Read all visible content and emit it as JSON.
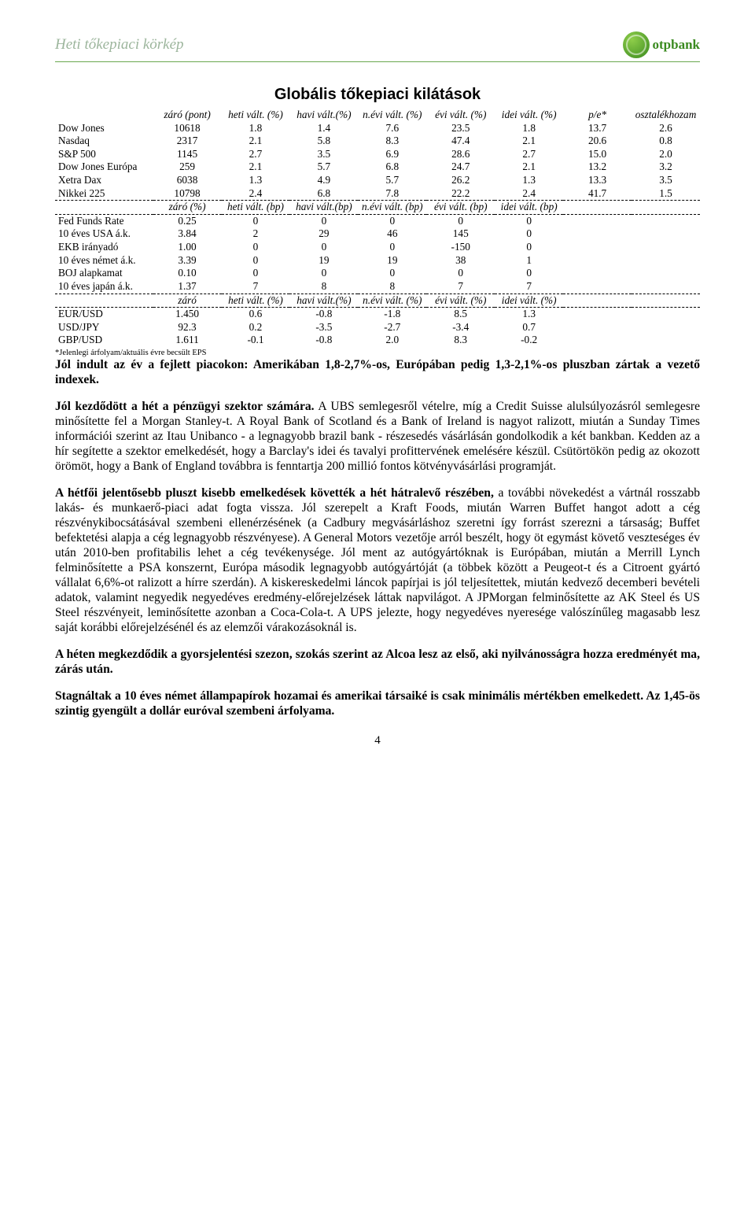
{
  "header": {
    "title": "Heti tőkepiaci körkép",
    "brand": "otpbank"
  },
  "title": "Globális tőkepiaci kilátások",
  "section1": {
    "headers": [
      "",
      "záró (pont)",
      "heti vált. (%)",
      "havi vált.(%)",
      "n.évi vált. (%)",
      "évi vált. (%)",
      "idei vált. (%)",
      "p/e*",
      "osztalékhozam"
    ],
    "rows": [
      [
        "Dow Jones",
        "10618",
        "1.8",
        "1.4",
        "7.6",
        "23.5",
        "1.8",
        "13.7",
        "2.6"
      ],
      [
        "Nasdaq",
        "2317",
        "2.1",
        "5.8",
        "8.3",
        "47.4",
        "2.1",
        "20.6",
        "0.8"
      ],
      [
        "S&P 500",
        "1145",
        "2.7",
        "3.5",
        "6.9",
        "28.6",
        "2.7",
        "15.0",
        "2.0"
      ],
      [
        "Dow Jones Európa",
        "259",
        "2.1",
        "5.7",
        "6.8",
        "24.7",
        "2.1",
        "13.2",
        "3.2"
      ],
      [
        "Xetra Dax",
        "6038",
        "1.3",
        "4.9",
        "5.7",
        "26.2",
        "1.3",
        "13.3",
        "3.5"
      ],
      [
        "Nikkei 225",
        "10798",
        "2.4",
        "6.8",
        "7.8",
        "22.2",
        "2.4",
        "41.7",
        "1.5"
      ]
    ]
  },
  "section2": {
    "headers": [
      "",
      "záró (%)",
      "heti vált. (bp)",
      "havi vált.(bp)",
      "n.évi vált. (bp)",
      "évi vált. (bp)",
      "idei vált. (bp)",
      "",
      ""
    ],
    "rows": [
      [
        "Fed Funds Rate",
        "0.25",
        "0",
        "0",
        "0",
        "0",
        "0",
        "",
        ""
      ],
      [
        "10 éves USA á.k.",
        "3.84",
        "2",
        "29",
        "46",
        "145",
        "0",
        "",
        ""
      ],
      [
        "EKB irányadó",
        "1.00",
        "0",
        "0",
        "0",
        "-150",
        "0",
        "",
        ""
      ],
      [
        "10 éves német á.k.",
        "3.39",
        "0",
        "19",
        "19",
        "38",
        "1",
        "",
        ""
      ],
      [
        "BOJ alapkamat",
        "0.10",
        "0",
        "0",
        "0",
        "0",
        "0",
        "",
        ""
      ],
      [
        "10 éves japán á.k.",
        "1.37",
        "7",
        "8",
        "8",
        "7",
        "7",
        "",
        ""
      ]
    ]
  },
  "section3": {
    "headers": [
      "",
      "záró",
      "heti vált. (%)",
      "havi vált.(%)",
      "n.évi vált. (%)",
      "évi vált. (%)",
      "idei vált. (%)",
      "",
      ""
    ],
    "rows": [
      [
        "EUR/USD",
        "1.450",
        "0.6",
        "-0.8",
        "-1.8",
        "8.5",
        "1.3",
        "",
        ""
      ],
      [
        "USD/JPY",
        "92.3",
        "0.2",
        "-3.5",
        "-2.7",
        "-3.4",
        "0.7",
        "",
        ""
      ],
      [
        "GBP/USD",
        "1.611",
        "-0.1",
        "-0.8",
        "2.0",
        "8.3",
        "-0.2",
        "",
        ""
      ]
    ]
  },
  "footnote": "*Jelenlegi árfolyam/aktuális évre becsült EPS",
  "paragraphs": {
    "p1a": "Jól indult az év a fejlett piacokon: Amerikában 1,8-2,7%-os, Európában pedig 1,3-2,1%-os pluszban zártak a vezető indexek.",
    "p2a": "Jól kezdődött a hét a pénzügyi szektor számára.",
    "p2b": " A UBS semlegesről vételre, míg a Credit Suisse alulsúlyozásról semlegesre minősítette fel a Morgan Stanley-t. A Royal Bank of Scotland és a Bank of Ireland is nagyot ralizott, miután a Sunday Times információi szerint az Itau Unibanco - a legnagyobb brazil bank - részesedés vásárlásán gondolkodik a két bankban. Kedden az a hír segítette a szektor emelkedését, hogy a Barclay's idei és tavalyi profittervének emelésére készül. Csütörtökön pedig az okozott örömöt, hogy a Bank of England továbbra is fenntartja 200 millió fontos kötvényvásárlási programját.",
    "p3a": "A hétfői jelentősebb pluszt kisebb emelkedések követték a hét hátralevő részében,",
    "p3b": " a további növekedést a vártnál rosszabb lakás- és munkaerő-piaci adat fogta vissza. Jól szerepelt a Kraft Foods, miután Warren Buffet hangot adott a cég részvénykibocsátásával szembeni ellenérzésének (a Cadbury megvásárláshoz szeretni így forrást szerezni a társaság; Buffet befektetési alapja a cég legnagyobb részvényese). A General Motors vezetője arról beszélt, hogy öt egymást követő veszteséges év után 2010-ben profitabilis lehet a cég tevékenysége. Jól ment az autógyártóknak is Európában, miután a Merrill Lynch felminősítette a PSA konszernt, Európa második legnagyobb autógyártóját (a többek között a Peugeot-t és a Citroent gyártó vállalat 6,6%-ot ralizott a hírre szerdán). A kiskereskedelmi láncok papírjai is jól teljesítettek, miután kedvező decemberi bevételi adatok, valamint negyedik negyedéves eredmény-előrejelzések láttak napvilágot. A JPMorgan felminősítette az AK Steel és US Steel részvényeit, leminősítette azonban a Coca-Cola-t. A UPS jelezte, hogy negyedéves nyeresége valószínűleg magasabb lesz saját korábbi előrejelzésénél és az elemzői várakozásoknál is.",
    "p4a": "A héten megkezdődik a gyorsjelentési szezon, szokás szerint az Alcoa lesz az első, aki nyilvánosságra hozza eredményét ma, zárás után.",
    "p5a": "Stagnáltak a 10 éves német állampapírok hozamai és amerikai társaiké is csak minimális mértékben emelkedett. Az 1,45-ös szintig gyengült a dollár euróval szembeni árfolyama."
  },
  "pageNumber": "4"
}
